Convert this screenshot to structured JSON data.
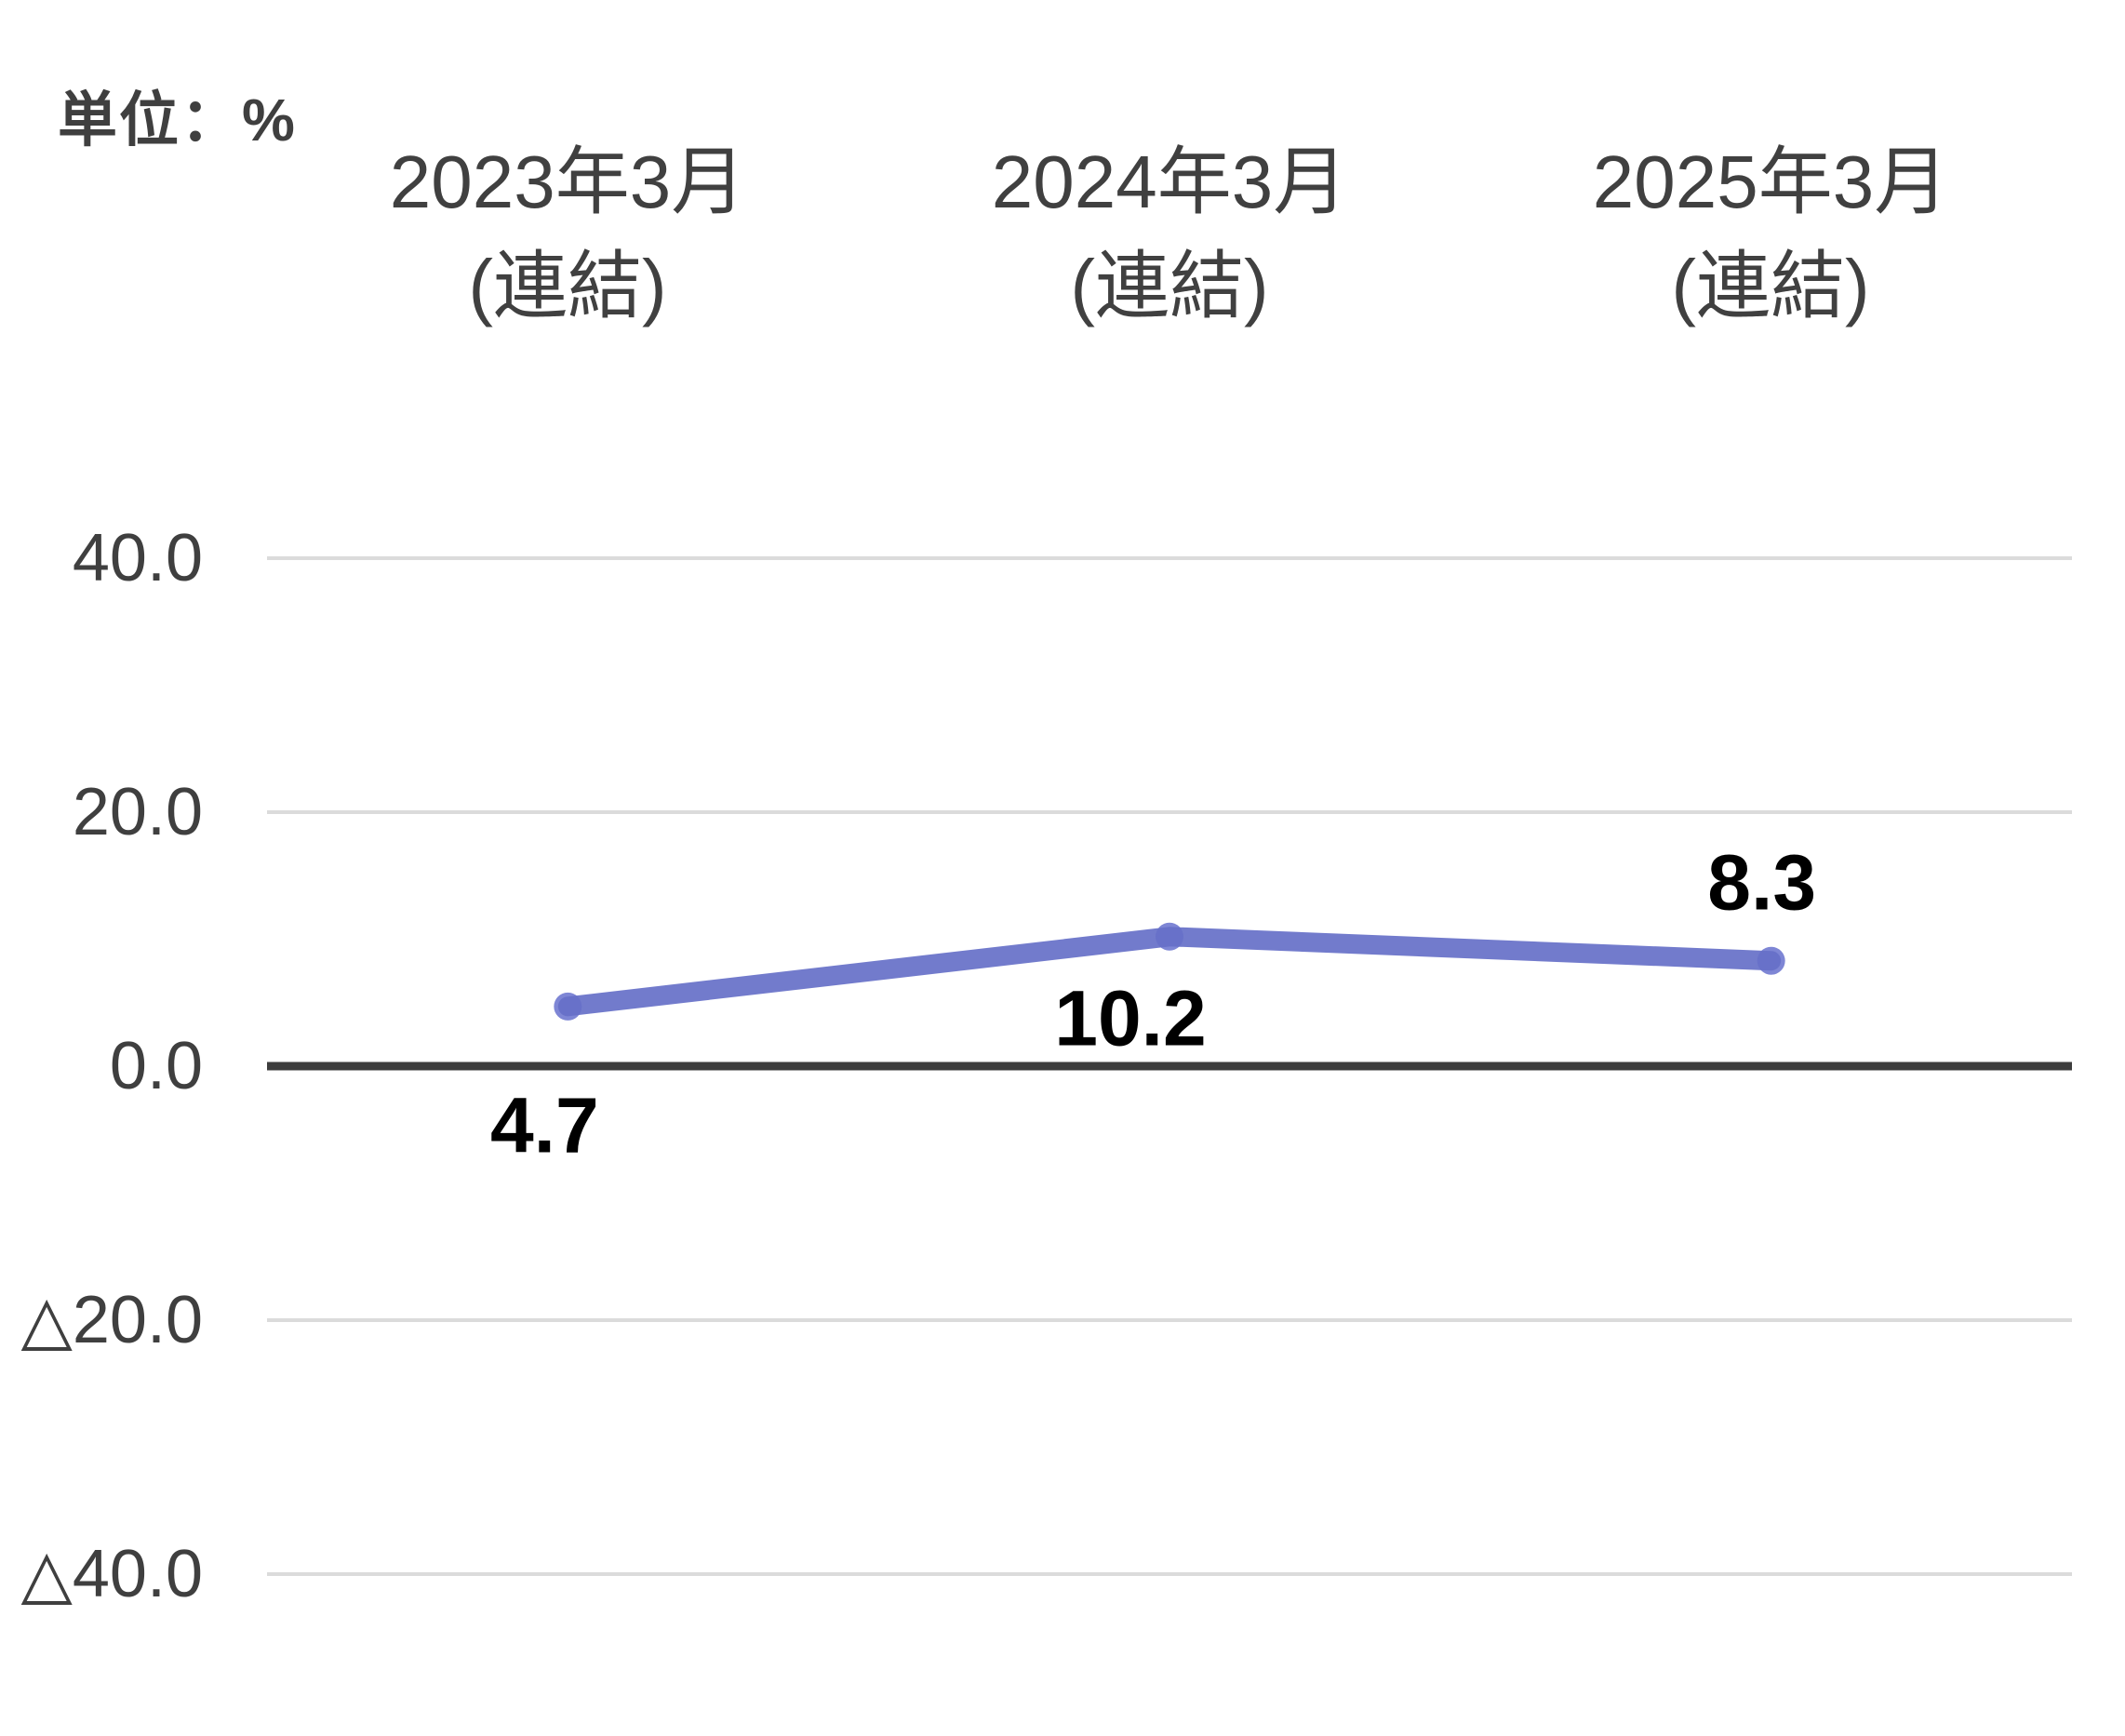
{
  "unit_label": "単位：%",
  "columns": [
    {
      "line1": "2023年3月",
      "line2": "(連結)"
    },
    {
      "line1": "2024年3月",
      "line2": "(連結)"
    },
    {
      "line1": "2025年3月",
      "line2": "(連結)"
    }
  ],
  "y_axis": {
    "ticks": [
      {
        "label": "40.0",
        "value": 40
      },
      {
        "label": "20.0",
        "value": 20
      },
      {
        "label": "0.0",
        "value": 0
      },
      {
        "label": "△20.0",
        "value": -20
      },
      {
        "label": "△40.0",
        "value": -40
      }
    ]
  },
  "data_labels": {
    "0": "4.7",
    "1": "10.2",
    "2": "8.3"
  },
  "chart_data": {
    "type": "line",
    "categories": [
      "2023年3月(連結)",
      "2024年3月(連結)",
      "2025年3月(連結)"
    ],
    "series": [
      {
        "name": "",
        "values": [
          4.7,
          10.2,
          8.3
        ]
      }
    ],
    "title": "",
    "xlabel": "",
    "ylabel": "単位：%",
    "ylim": [
      -40,
      40
    ],
    "yticks": [
      40,
      20,
      0,
      -20,
      -40
    ],
    "negative_tick_prefix": "△",
    "grid": true,
    "legend": false,
    "colors": {
      "line": "#6670C8",
      "marker": "#7E86D5",
      "gridline": "#DBDBDB",
      "zero_axis": "#3D3D3D",
      "header_text": "#404040",
      "tick_text": "#3F3F3F",
      "value_text": "#000000"
    }
  }
}
